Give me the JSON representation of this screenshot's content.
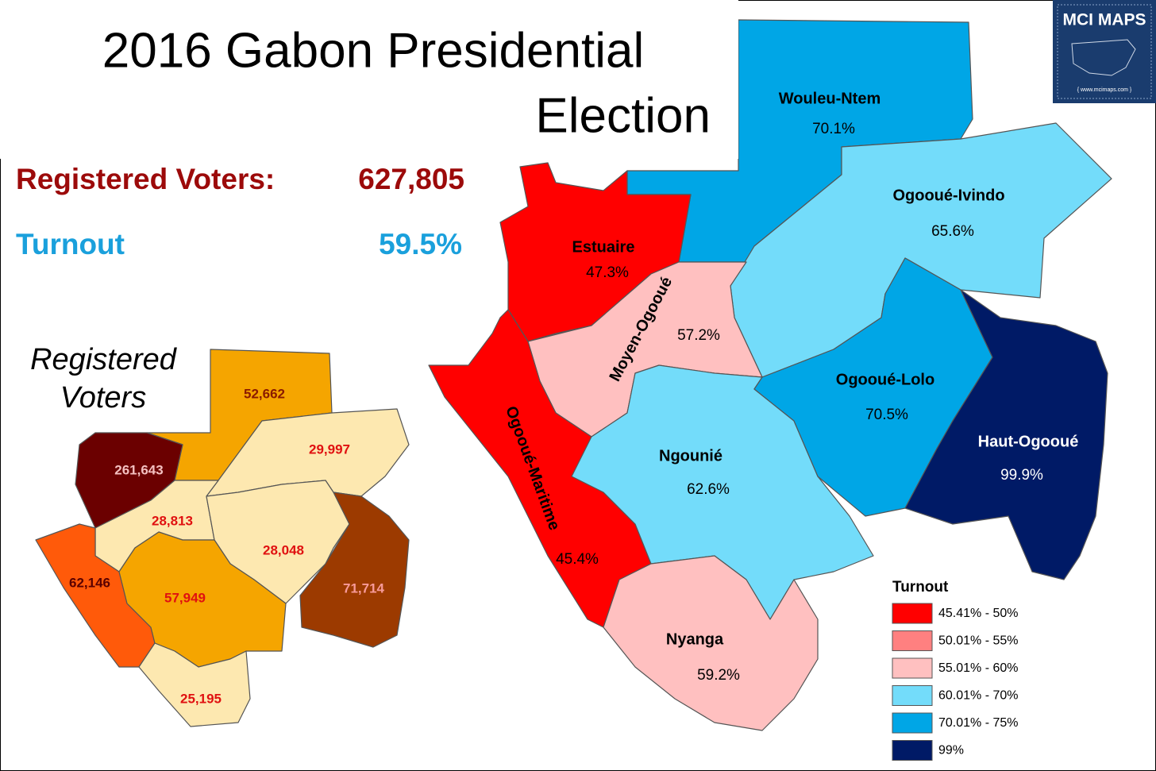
{
  "title": {
    "line1": "2016 Gabon Presidential",
    "line2": "Election"
  },
  "summary": {
    "registered_label": "Registered Voters:",
    "registered_value": "627,805",
    "turnout_label": "Turnout",
    "turnout_value": "59.5%"
  },
  "turnout_map": {
    "regions": [
      {
        "name": "Wouleu-Ntem",
        "turnout": "70.1%"
      },
      {
        "name": "Ogooué-Ivindo",
        "turnout": "65.6%"
      },
      {
        "name": "Estuaire",
        "turnout": "47.3%"
      },
      {
        "name": "Moyen-Ogooué",
        "turnout": "57.2%"
      },
      {
        "name": "Ogooué-Maritime",
        "turnout": "45.4%"
      },
      {
        "name": "Ngounié",
        "turnout": "62.6%"
      },
      {
        "name": "Ogooué-Lolo",
        "turnout": "70.5%"
      },
      {
        "name": "Haut-Ogooué",
        "turnout": "99.9%"
      },
      {
        "name": "Nyanga",
        "turnout": "59.2%"
      }
    ]
  },
  "voters_map": {
    "title_line1": "Registered",
    "title_line2": "Voters",
    "regions": [
      "52,662",
      "29,997",
      "261,643",
      "28,813",
      "28,048",
      "71,714",
      "62,146",
      "57,949",
      "25,195"
    ]
  },
  "legend": {
    "title": "Turnout",
    "items": [
      "45.41% - 50%",
      "50.01% - 55%",
      "55.01% - 60%",
      "60.01% - 70%",
      "70.01% - 75%",
      "99%"
    ]
  },
  "logo": {
    "name": "MCI MAPS",
    "url": "{ www.mcimaps.com }"
  }
}
